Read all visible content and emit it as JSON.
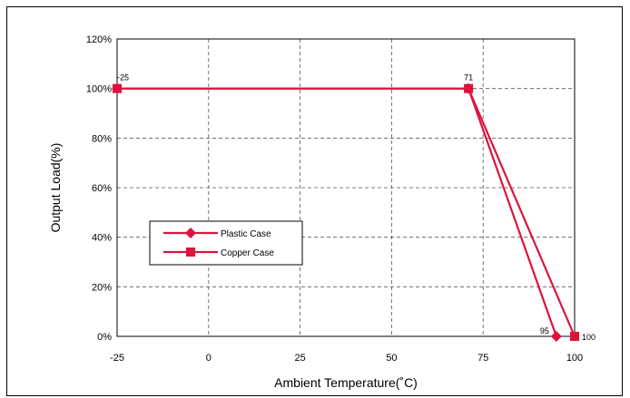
{
  "chart_data": {
    "type": "line",
    "xlabel": "Ambient Temperature(˚C)",
    "ylabel": "Output Load(%)",
    "xlim": [
      -25,
      100
    ],
    "ylim": [
      0,
      120
    ],
    "x_ticks": [
      -25,
      0,
      25,
      50,
      75,
      100
    ],
    "x_tick_labels": [
      "-25",
      "0",
      "25",
      "50",
      "75",
      "100"
    ],
    "y_ticks": [
      0,
      20,
      40,
      60,
      80,
      100,
      120
    ],
    "y_tick_labels": [
      "0%",
      "20%",
      "40%",
      "60%",
      "80%",
      "100%",
      "120%"
    ],
    "grid": true,
    "legend_position": "lower-left",
    "series": [
      {
        "name": "Plastic Case",
        "marker": "diamond",
        "color": "#dc143c",
        "x": [
          -25,
          71,
          95
        ],
        "y": [
          100,
          100,
          0
        ]
      },
      {
        "name": "Copper Case",
        "marker": "square",
        "color": "#dc143c",
        "x": [
          -25,
          71,
          100
        ],
        "y": [
          100,
          100,
          0
        ]
      }
    ],
    "annotations": [
      {
        "text": "-25",
        "x": -25,
        "y": 100
      },
      {
        "text": "71",
        "x": 71,
        "y": 100
      },
      {
        "text": "95",
        "x": 95,
        "y": 0
      },
      {
        "text": "100",
        "x": 100,
        "y": 0
      }
    ]
  }
}
